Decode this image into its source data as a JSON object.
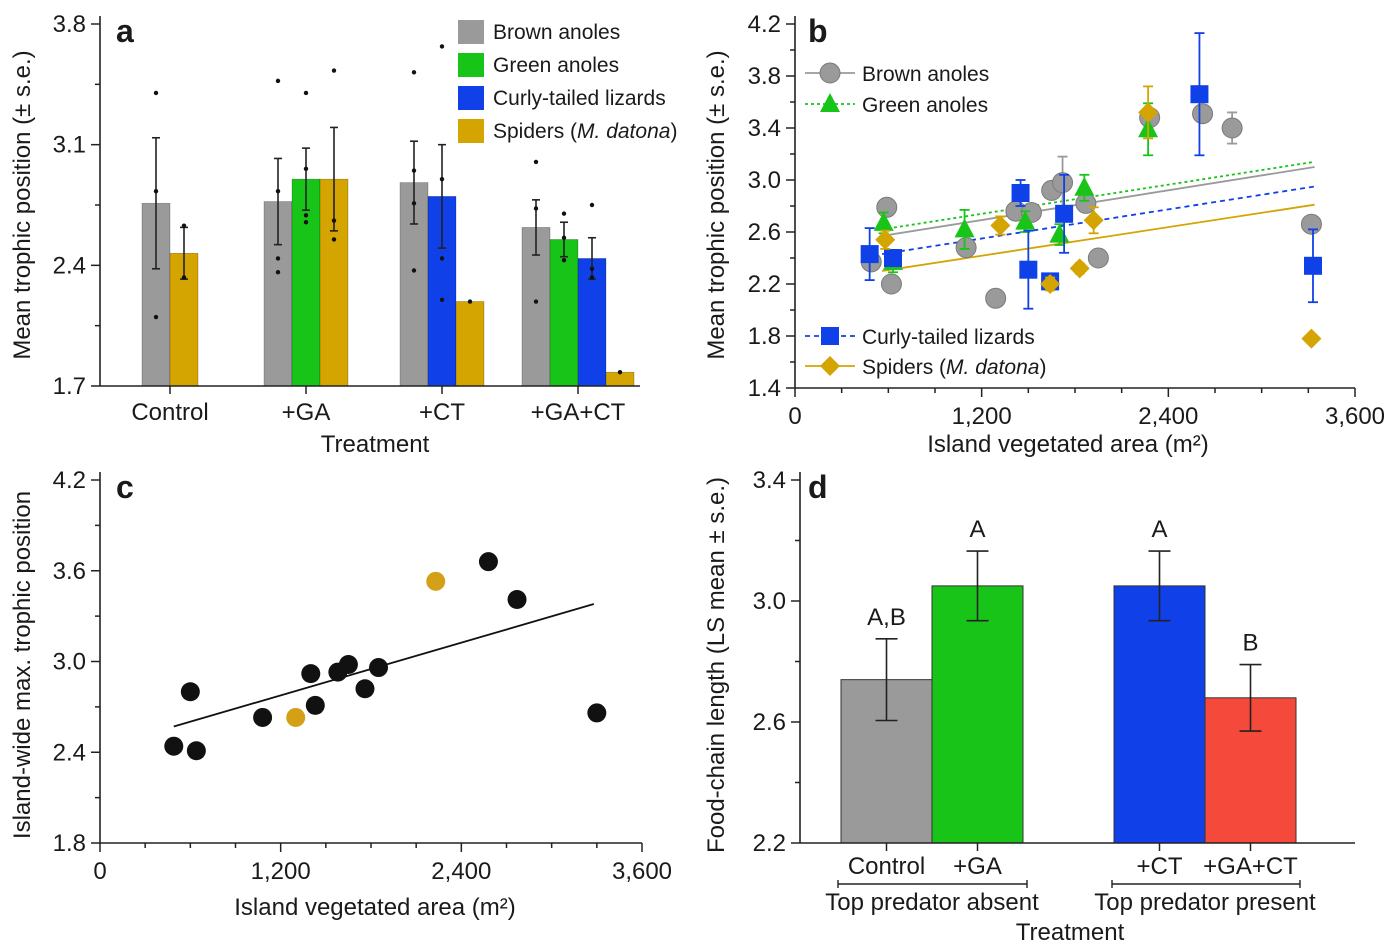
{
  "colors": {
    "brown": "#9a9a9a",
    "green": "#18c418",
    "curly": "#1040e8",
    "spider": "#d4a400",
    "red": "#f4493b",
    "black": "#111111",
    "gold": "#d4a017"
  },
  "chart_data": [
    {
      "panel": "a",
      "type": "bar",
      "xlabel": "Treatment",
      "ylabel": "Mean trophic position (± s.e.)",
      "ylim": [
        1.7,
        3.8
      ],
      "yticks": [
        "1.7",
        "2.4",
        "3.1",
        "3.8"
      ],
      "categories": [
        "Control",
        "+GA",
        "+CT",
        "+GA+CT"
      ],
      "legend": {
        "position": "top-right",
        "items": [
          {
            "pre": "Brown anoles",
            "italic": "",
            "post": "",
            "color": "brown"
          },
          {
            "pre": "Green anoles",
            "italic": "",
            "post": "",
            "color": "green"
          },
          {
            "pre": "Curly-tailed lizards",
            "italic": "",
            "post": "",
            "color": "curly"
          },
          {
            "pre": "Spiders (",
            "italic": "M. datona",
            "post": ")",
            "color": "spider"
          }
        ]
      },
      "groups": [
        {
          "category": "Control",
          "bars": [
            {
              "series": "Brown anoles",
              "color": "brown",
              "value": 2.76,
              "err": 0.38,
              "dots": [
                3.4,
                2.83,
                2.1
              ]
            },
            {
              "series": "Spiders",
              "color": "spider",
              "value": 2.47,
              "err": 0.15,
              "dots": [
                2.63,
                2.33
              ]
            }
          ]
        },
        {
          "category": "+GA",
          "bars": [
            {
              "series": "Brown anoles",
              "color": "brown",
              "value": 2.77,
              "err": 0.25,
              "dots": [
                3.47,
                2.83,
                2.44,
                2.36
              ]
            },
            {
              "series": "Green anoles",
              "color": "green",
              "value": 2.9,
              "err": 0.18,
              "dots": [
                3.4,
                2.96,
                2.69,
                2.65
              ]
            },
            {
              "series": "Spiders",
              "color": "spider",
              "value": 2.9,
              "err": 0.3,
              "dots": [
                3.53,
                2.66,
                2.55
              ]
            }
          ]
        },
        {
          "category": "+CT",
          "bars": [
            {
              "series": "Brown anoles",
              "color": "brown",
              "value": 2.88,
              "err": 0.24,
              "dots": [
                3.52,
                2.95,
                2.76,
                2.37
              ]
            },
            {
              "series": "Curly-tailed lizards",
              "color": "curly",
              "value": 2.8,
              "err": 0.3,
              "dots": [
                3.67,
                2.9,
                2.44,
                2.2
              ]
            },
            {
              "series": "Spiders",
              "color": "spider",
              "value": 2.19,
              "err": 0.0,
              "dots": [
                2.19
              ]
            }
          ]
        },
        {
          "category": "+GA+CT",
          "bars": [
            {
              "series": "Brown anoles",
              "color": "brown",
              "value": 2.62,
              "err": 0.16,
              "dots": [
                3.0,
                2.73,
                2.19
              ]
            },
            {
              "series": "Green anoles",
              "color": "green",
              "value": 2.55,
              "err": 0.1,
              "dots": [
                2.7,
                2.56,
                2.43
              ]
            },
            {
              "series": "Curly-tailed lizards",
              "color": "curly",
              "value": 2.44,
              "err": 0.12,
              "dots": [
                2.75,
                2.38,
                2.33
              ]
            },
            {
              "series": "Spiders",
              "color": "spider",
              "value": 1.78,
              "err": 0.0,
              "dots": [
                1.78
              ]
            }
          ]
        }
      ]
    },
    {
      "panel": "b",
      "type": "scatter",
      "xlabel": "Island vegetated area (m²)",
      "ylabel": "Mean trophic position (± s.e.)",
      "xlim": [
        0,
        3600
      ],
      "ylim": [
        1.4,
        4.2
      ],
      "xticks": [
        "0",
        "1,200",
        "2,400",
        "3,600"
      ],
      "yticks": [
        "1.4",
        "1.8",
        "2.2",
        "2.6",
        "3.0",
        "3.4",
        "3.8",
        "4.2"
      ],
      "legend": {
        "position": "top-left and bottom-left",
        "items": [
          {
            "pre": "Brown anoles",
            "italic": "",
            "post": ""
          },
          {
            "pre": "Green anoles",
            "italic": "",
            "post": ""
          },
          {
            "pre": "Curly-tailed lizards",
            "italic": "",
            "post": ""
          },
          {
            "pre": "Spiders (",
            "italic": "M. datona",
            "post": ")"
          }
        ]
      },
      "series": [
        {
          "name": "Brown anoles",
          "color": "brown",
          "marker": "circle",
          "line": "solid",
          "fit": [
            [
              560,
              2.57
            ],
            [
              3340,
              3.1
            ]
          ],
          "points": [
            [
              490,
              2.37,
              0.05
            ],
            [
              590,
              2.79,
              0.05
            ],
            [
              620,
              2.2,
              0.05
            ],
            [
              1100,
              2.48,
              0.05
            ],
            [
              1290,
              2.09,
              0.04
            ],
            [
              1420,
              2.76,
              0.06
            ],
            [
              1520,
              2.75,
              0.05
            ],
            [
              1650,
              2.92,
              0.05
            ],
            [
              1720,
              2.98,
              0.2
            ],
            [
              1870,
              2.82,
              0.05
            ],
            [
              1950,
              2.4,
              0.05
            ],
            [
              2280,
              3.48,
              0.05
            ],
            [
              2620,
              3.51,
              0.06
            ],
            [
              2810,
              3.4,
              0.12
            ],
            [
              3320,
              2.66,
              0.06
            ]
          ]
        },
        {
          "name": "Green anoles",
          "color": "green",
          "marker": "triangle",
          "line": "dotted",
          "fit": [
            [
              560,
              2.62
            ],
            [
              3340,
              3.14
            ]
          ],
          "points": [
            [
              570,
              2.67,
              0.08
            ],
            [
              630,
              2.37,
              0.08
            ],
            [
              1090,
              2.62,
              0.15
            ],
            [
              1480,
              2.68,
              0.08
            ],
            [
              1700,
              2.58,
              0.08
            ],
            [
              1860,
              2.94,
              0.1
            ],
            [
              2270,
              3.39,
              0.2
            ]
          ]
        },
        {
          "name": "Curly-tailed lizards",
          "color": "curly",
          "marker": "square",
          "line": "dashed",
          "fit": [
            [
              560,
              2.43
            ],
            [
              3340,
              2.95
            ]
          ],
          "points": [
            [
              480,
              2.43,
              0.2
            ],
            [
              630,
              2.4,
              0.05
            ],
            [
              1450,
              2.9,
              0.1
            ],
            [
              1500,
              2.31,
              0.3
            ],
            [
              1640,
              2.22,
              0.05
            ],
            [
              1730,
              2.74,
              0.3
            ],
            [
              2600,
              3.66,
              0.47
            ],
            [
              3330,
              2.34,
              0.28
            ]
          ]
        },
        {
          "name": "Spiders (M. datona)",
          "color": "spider",
          "marker": "diamond",
          "line": "solid",
          "fit": [
            [
              560,
              2.3
            ],
            [
              3340,
              2.81
            ]
          ],
          "points": [
            [
              580,
              2.54,
              0.07
            ],
            [
              1320,
              2.65,
              0.07
            ],
            [
              1640,
              2.2,
              0.05
            ],
            [
              1830,
              2.32,
              0.04
            ],
            [
              1920,
              2.69,
              0.1
            ],
            [
              2270,
              3.52,
              0.2
            ],
            [
              3320,
              1.78,
              0.0
            ]
          ]
        }
      ]
    },
    {
      "panel": "c",
      "type": "scatter",
      "xlabel": "Island vegetated area (m²)",
      "ylabel": "Island-wide max. trophic position",
      "xlim": [
        0,
        3600
      ],
      "ylim": [
        1.8,
        4.2
      ],
      "xticks": [
        "0",
        "1,200",
        "2,400",
        "3,600"
      ],
      "yticks": [
        "1.8",
        "2.4",
        "3.0",
        "3.6",
        "4.2"
      ],
      "fit": [
        [
          490,
          2.57
        ],
        [
          3280,
          3.38
        ]
      ],
      "points": [
        {
          "x": 490,
          "y": 2.44,
          "color": "black"
        },
        {
          "x": 600,
          "y": 2.8,
          "color": "black"
        },
        {
          "x": 640,
          "y": 2.41,
          "color": "black"
        },
        {
          "x": 1080,
          "y": 2.63,
          "color": "black"
        },
        {
          "x": 1300,
          "y": 2.63,
          "color": "gold"
        },
        {
          "x": 1400,
          "y": 2.92,
          "color": "black"
        },
        {
          "x": 1430,
          "y": 2.71,
          "color": "black"
        },
        {
          "x": 1580,
          "y": 2.93,
          "color": "black"
        },
        {
          "x": 1650,
          "y": 2.98,
          "color": "black"
        },
        {
          "x": 1760,
          "y": 2.82,
          "color": "black"
        },
        {
          "x": 1850,
          "y": 2.96,
          "color": "black"
        },
        {
          "x": 2230,
          "y": 3.53,
          "color": "gold"
        },
        {
          "x": 2580,
          "y": 3.66,
          "color": "black"
        },
        {
          "x": 2770,
          "y": 3.41,
          "color": "black"
        },
        {
          "x": 3300,
          "y": 2.66,
          "color": "black"
        }
      ]
    },
    {
      "panel": "d",
      "type": "bar",
      "xlabel": "Treatment",
      "ylabel": "Food-chain length (LS mean ± s.e.)",
      "ylim": [
        2.2,
        3.4
      ],
      "yticks": [
        "2.2",
        "2.6",
        "3.0",
        "3.4"
      ],
      "groups": [
        {
          "label": "Top predator absent",
          "bars": [
            {
              "category": "Control",
              "color": "brown",
              "value": 2.74,
              "err": 0.135,
              "letter": "A,B"
            },
            {
              "category": "+GA",
              "color": "green",
              "value": 3.05,
              "err": 0.115,
              "letter": "A"
            }
          ]
        },
        {
          "label": "Top predator present",
          "bars": [
            {
              "category": "+CT",
              "color": "curly",
              "value": 3.05,
              "err": 0.115,
              "letter": "A"
            },
            {
              "category": "+GA+CT",
              "color": "red",
              "value": 2.68,
              "err": 0.11,
              "letter": "B"
            }
          ]
        }
      ]
    }
  ]
}
